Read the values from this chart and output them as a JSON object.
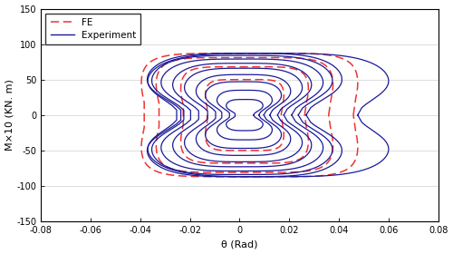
{
  "xlabel": "θ (Rad)",
  "ylabel": "M×10 (KN. m)",
  "xlim": [
    -0.08,
    0.08
  ],
  "ylim": [
    -150,
    150
  ],
  "xticks": [
    -0.08,
    -0.06,
    -0.04,
    -0.02,
    0,
    0.02,
    0.04,
    0.06,
    0.08
  ],
  "yticks": [
    -150,
    -100,
    -50,
    0,
    50,
    100,
    150
  ],
  "fe_color": "#EE3333",
  "exp_color": "#1a1a99",
  "background": "#ffffff",
  "legend_fe": "FE",
  "legend_exp": "Experiment"
}
